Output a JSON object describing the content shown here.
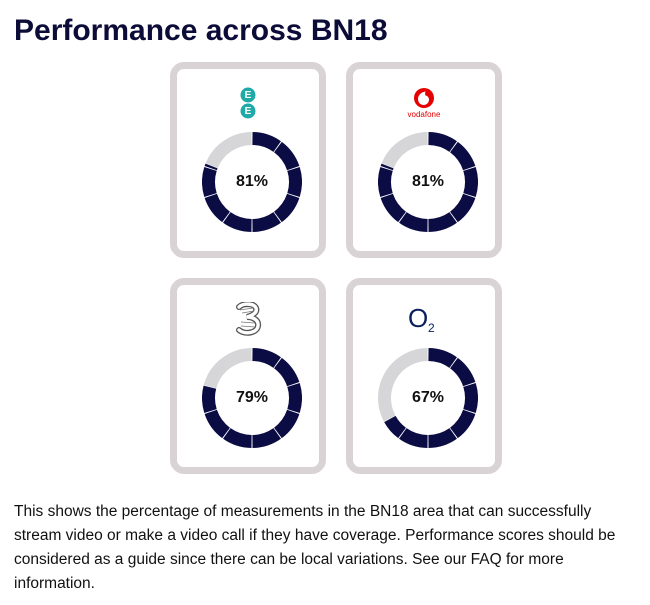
{
  "page": {
    "title": "Performance across BN18",
    "description": "This shows the percentage of measurements in the BN18 area that can successfully stream video or make a video call if they have coverage. Performance scores should be considered as a guide since there can be local variations. See our FAQ for more information."
  },
  "colors": {
    "filled": "#0c0c44",
    "unfilled": "#d6d6d8",
    "card_border": "#d9d3d5",
    "title": "#0c0c38"
  },
  "operators": [
    {
      "name": "EE",
      "logo_icon": "ee-logo-icon",
      "value": 81,
      "label": "81%"
    },
    {
      "name": "Vodafone",
      "logo_icon": "vodafone-logo-icon",
      "logo_text": "vodafone",
      "value": 81,
      "label": "81%"
    },
    {
      "name": "Three",
      "logo_icon": "three-logo-icon",
      "value": 79,
      "label": "79%"
    },
    {
      "name": "O2",
      "logo_icon": "o2-logo-icon",
      "logo_text": "O",
      "logo_sub": "2",
      "value": 67,
      "label": "67%"
    }
  ]
}
